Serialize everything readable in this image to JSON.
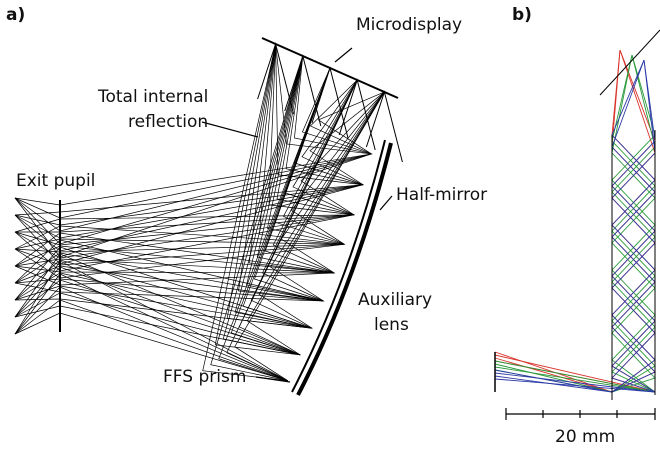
{
  "panels": [
    {
      "label": "a)",
      "annotations": {
        "microdisplay": "Microdisplay",
        "total_internal_reflection": [
          "Total internal",
          "reflection"
        ],
        "exit_pupil": "Exit pupil",
        "half_mirror": "Half-mirror",
        "auxiliary_lens": [
          "Auxiliary",
          "lens"
        ],
        "ffs_prism": "FFS prism"
      }
    },
    {
      "label": "b)",
      "scale_bar": "20 mm"
    }
  ]
}
